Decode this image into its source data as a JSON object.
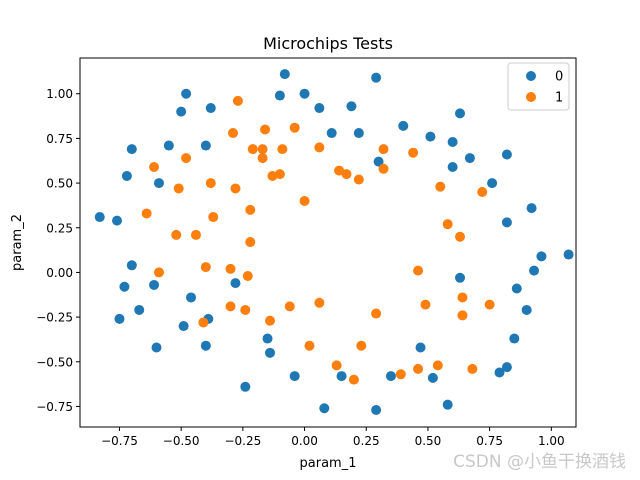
{
  "watermark": "CSDN @小鱼干换酒钱",
  "chart_data": {
    "type": "scatter",
    "title": "Microchips Tests",
    "xlabel": "param_1",
    "ylabel": "param_2",
    "xlim": [
      -0.91,
      1.1
    ],
    "ylim": [
      -0.865,
      1.2
    ],
    "xticks": [
      -0.75,
      -0.5,
      -0.25,
      0.0,
      0.25,
      0.5,
      0.75,
      1.0
    ],
    "xtick_labels": [
      "−0.75",
      "−0.50",
      "−0.25",
      "0.00",
      "0.25",
      "0.50",
      "0.75",
      "1.00"
    ],
    "yticks": [
      -0.75,
      -0.5,
      -0.25,
      0.0,
      0.25,
      0.5,
      0.75,
      1.0
    ],
    "ytick_labels": [
      "−0.75",
      "−0.50",
      "−0.25",
      "0.00",
      "0.25",
      "0.50",
      "0.75",
      "1.00"
    ],
    "grid": false,
    "legend_position": "top-right",
    "series": [
      {
        "name": "0",
        "color": "#1f77b4",
        "points": [
          [
            -0.83,
            0.31
          ],
          [
            -0.76,
            0.29
          ],
          [
            -0.72,
            0.54
          ],
          [
            -0.7,
            0.69
          ],
          [
            -0.7,
            0.04
          ],
          [
            -0.73,
            -0.08
          ],
          [
            -0.75,
            -0.26
          ],
          [
            -0.67,
            -0.21
          ],
          [
            -0.61,
            -0.07
          ],
          [
            -0.6,
            -0.42
          ],
          [
            -0.59,
            0.5
          ],
          [
            -0.55,
            0.71
          ],
          [
            -0.5,
            0.9
          ],
          [
            -0.48,
            1.0
          ],
          [
            -0.49,
            -0.3
          ],
          [
            -0.46,
            -0.14
          ],
          [
            -0.4,
            0.71
          ],
          [
            -0.38,
            0.92
          ],
          [
            -0.4,
            -0.41
          ],
          [
            -0.39,
            -0.26
          ],
          [
            -0.28,
            -0.06
          ],
          [
            -0.24,
            -0.64
          ],
          [
            -0.15,
            -0.37
          ],
          [
            -0.14,
            -0.45
          ],
          [
            -0.1,
            0.99
          ],
          [
            -0.08,
            1.11
          ],
          [
            -0.04,
            -0.58
          ],
          [
            0.0,
            1.0
          ],
          [
            0.06,
            0.92
          ],
          [
            0.08,
            -0.76
          ],
          [
            0.11,
            0.78
          ],
          [
            0.15,
            -0.58
          ],
          [
            0.19,
            0.93
          ],
          [
            0.22,
            0.78
          ],
          [
            0.29,
            1.09
          ],
          [
            0.3,
            0.62
          ],
          [
            0.29,
            -0.77
          ],
          [
            0.35,
            -0.58
          ],
          [
            0.4,
            0.82
          ],
          [
            0.47,
            -0.42
          ],
          [
            0.51,
            0.76
          ],
          [
            0.52,
            -0.59
          ],
          [
            0.58,
            -0.74
          ],
          [
            0.6,
            0.73
          ],
          [
            0.6,
            0.59
          ],
          [
            0.63,
            0.89
          ],
          [
            0.63,
            -0.03
          ],
          [
            0.67,
            0.64
          ],
          [
            0.76,
            0.5
          ],
          [
            0.79,
            -0.56
          ],
          [
            0.82,
            0.66
          ],
          [
            0.82,
            0.28
          ],
          [
            0.82,
            -0.53
          ],
          [
            0.85,
            -0.37
          ],
          [
            0.86,
            -0.09
          ],
          [
            0.9,
            -0.21
          ],
          [
            0.92,
            0.36
          ],
          [
            0.93,
            0.01
          ],
          [
            0.96,
            0.09
          ],
          [
            1.07,
            0.1
          ]
        ]
      },
      {
        "name": "1",
        "color": "#ff7f0e",
        "points": [
          [
            -0.64,
            0.33
          ],
          [
            -0.61,
            0.59
          ],
          [
            -0.59,
            0.0
          ],
          [
            -0.51,
            0.47
          ],
          [
            -0.52,
            0.21
          ],
          [
            -0.48,
            0.64
          ],
          [
            -0.44,
            0.21
          ],
          [
            -0.41,
            -0.28
          ],
          [
            -0.4,
            0.03
          ],
          [
            -0.38,
            0.5
          ],
          [
            -0.37,
            0.31
          ],
          [
            -0.3,
            0.02
          ],
          [
            -0.3,
            -0.19
          ],
          [
            -0.29,
            0.78
          ],
          [
            -0.28,
            0.47
          ],
          [
            -0.27,
            0.96
          ],
          [
            -0.24,
            -0.21
          ],
          [
            -0.23,
            -0.02
          ],
          [
            -0.22,
            0.35
          ],
          [
            -0.21,
            0.69
          ],
          [
            -0.22,
            0.17
          ],
          [
            -0.17,
            0.69
          ],
          [
            -0.17,
            0.64
          ],
          [
            -0.16,
            0.8
          ],
          [
            -0.14,
            -0.27
          ],
          [
            -0.13,
            0.54
          ],
          [
            -0.09,
            0.69
          ],
          [
            -0.1,
            0.55
          ],
          [
            -0.06,
            -0.19
          ],
          [
            -0.04,
            0.81
          ],
          [
            0.0,
            0.4
          ],
          [
            0.02,
            -0.41
          ],
          [
            0.06,
            0.7
          ],
          [
            0.06,
            -0.17
          ],
          [
            0.13,
            -0.52
          ],
          [
            0.14,
            0.57
          ],
          [
            0.17,
            0.55
          ],
          [
            0.2,
            -0.6
          ],
          [
            0.22,
            0.52
          ],
          [
            0.23,
            -0.41
          ],
          [
            0.29,
            -0.23
          ],
          [
            0.32,
            0.69
          ],
          [
            0.32,
            0.58
          ],
          [
            0.39,
            -0.57
          ],
          [
            0.44,
            0.67
          ],
          [
            0.46,
            0.01
          ],
          [
            0.46,
            -0.54
          ],
          [
            0.49,
            -0.18
          ],
          [
            0.54,
            -0.52
          ],
          [
            0.55,
            0.48
          ],
          [
            0.58,
            0.27
          ],
          [
            0.63,
            0.2
          ],
          [
            0.64,
            -0.14
          ],
          [
            0.64,
            -0.24
          ],
          [
            0.68,
            -0.54
          ],
          [
            0.72,
            0.45
          ],
          [
            0.75,
            -0.18
          ]
        ]
      }
    ]
  }
}
